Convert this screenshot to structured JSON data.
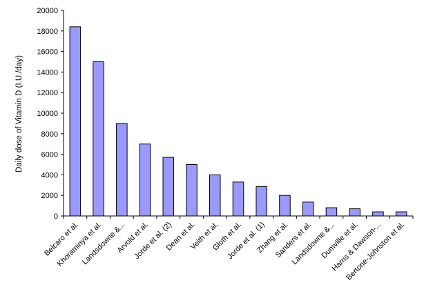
{
  "chart_data": {
    "type": "bar",
    "ylabel": "Daily dose of Vitamin D (I.U./day)",
    "xlabel": "",
    "ylim": [
      0,
      20000
    ],
    "yticks": [
      0,
      2000,
      4000,
      6000,
      8000,
      10000,
      12000,
      14000,
      16000,
      18000,
      20000
    ],
    "grid": false,
    "legend": "none",
    "bar_color": "#9999ff",
    "bar_outline": "#000000",
    "categories": [
      "Belcaro et al.",
      "Khoraminya et al.",
      "Landsdowne &...",
      "Arvold et al.",
      "Jorde et al. (2)",
      "Dean et al.",
      "Veith et al.",
      "Gloth et al.",
      "Jorde et al. (1)",
      "Zhang et al.",
      "Sanders et al.",
      "Landsdowne &...",
      "Dumville et al.",
      "Harris & Dawson-...",
      "Bertone-Johnston et al."
    ],
    "values": [
      18400,
      15000,
      9000,
      7000,
      5700,
      5000,
      4000,
      3300,
      2850,
      2000,
      1350,
      800,
      700,
      400,
      400
    ]
  }
}
